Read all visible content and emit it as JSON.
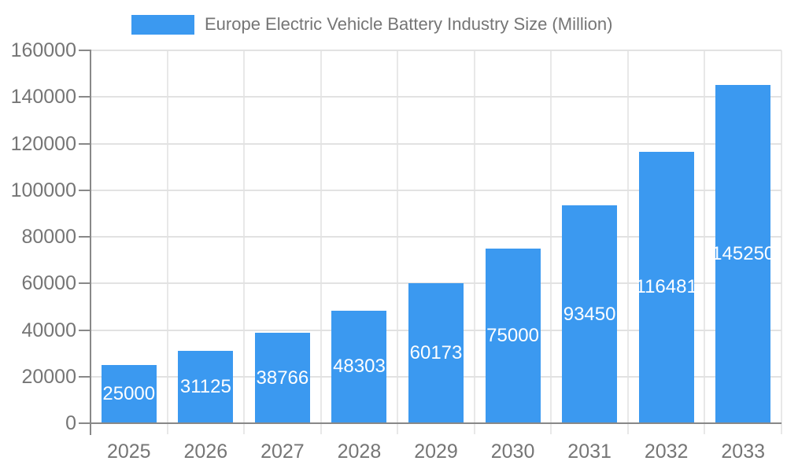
{
  "page": {
    "background": "#ffffff"
  },
  "legend": {
    "label": "Europe Electric Vehicle Battery Industry Size (Million)",
    "swatch_color": "#3b99f0"
  },
  "chart_data": {
    "type": "bar",
    "title": "Europe Electric Vehicle Battery Industry Size (Million)",
    "legend_position": "top",
    "categories": [
      "2025",
      "2026",
      "2027",
      "2028",
      "2029",
      "2030",
      "2031",
      "2032",
      "2033"
    ],
    "values": [
      25000,
      31125,
      38766,
      48303,
      60173,
      75000,
      93450,
      116481,
      145250
    ],
    "value_labels": [
      "25000",
      "31125",
      "38766",
      "48303",
      "60173",
      "75000",
      "93450",
      "116481",
      "145250"
    ],
    "xlabel": "",
    "ylabel": "",
    "ylim": [
      0,
      160000
    ],
    "yticks": [
      0,
      20000,
      40000,
      60000,
      80000,
      100000,
      120000,
      140000,
      160000
    ],
    "grid": true,
    "value_labels_inside_bars": true,
    "colors": {
      "bar": "#3b99f0",
      "axis": "#888888",
      "gridline_h": "#e2e2e2",
      "gridline_v": "#e8e8e8",
      "tick_label": "#757575",
      "value_label": "#ffffff",
      "background": "#ffffff"
    }
  }
}
